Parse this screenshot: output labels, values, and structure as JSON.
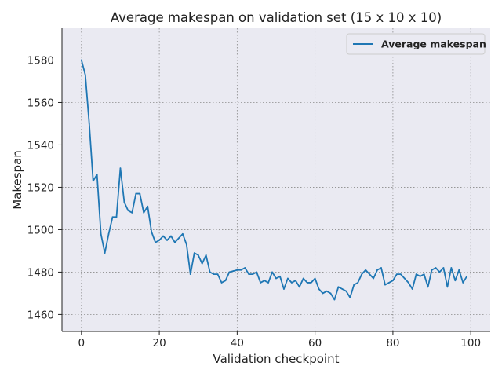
{
  "chart_data": {
    "type": "line",
    "title": "Average makespan on validation set (15 x 10 x 10)",
    "xlabel": "Validation checkpoint",
    "ylabel": "Makespan",
    "xlim": [
      -5,
      105
    ],
    "ylim": [
      1452,
      1595
    ],
    "xticks": [
      0,
      20,
      40,
      60,
      80,
      100
    ],
    "yticks": [
      1460,
      1480,
      1500,
      1520,
      1540,
      1560,
      1580
    ],
    "grid": true,
    "legend_position": "top-right",
    "series": [
      {
        "name": "Average makespan",
        "color": "#1f77b4",
        "x": [
          0,
          1,
          2,
          3,
          4,
          5,
          6,
          7,
          8,
          9,
          10,
          11,
          12,
          13,
          14,
          15,
          16,
          17,
          18,
          19,
          20,
          21,
          22,
          23,
          24,
          25,
          26,
          27,
          28,
          29,
          30,
          31,
          32,
          33,
          34,
          35,
          36,
          37,
          38,
          39,
          40,
          41,
          42,
          43,
          44,
          45,
          46,
          47,
          48,
          49,
          50,
          51,
          52,
          53,
          54,
          55,
          56,
          57,
          58,
          59,
          60,
          61,
          62,
          63,
          64,
          65,
          66,
          67,
          68,
          69,
          70,
          71,
          72,
          73,
          74,
          75,
          76,
          77,
          78,
          79,
          80,
          81,
          82,
          83,
          84,
          85,
          86,
          87,
          88,
          89,
          90,
          91,
          92,
          93,
          94,
          95,
          96,
          97,
          98,
          99
        ],
        "values": [
          1580,
          1573,
          1550,
          1523,
          1526,
          1498,
          1489,
          1498,
          1506,
          1506,
          1529,
          1513,
          1509,
          1508,
          1517,
          1517,
          1508,
          1511,
          1499,
          1494,
          1495,
          1497,
          1495,
          1497,
          1494,
          1496,
          1498,
          1493,
          1479,
          1489,
          1488,
          1484,
          1488,
          1480,
          1479,
          1479,
          1475,
          1476,
          1480,
          1480.5,
          1481,
          1481,
          1482,
          1479,
          1479,
          1480,
          1475,
          1476,
          1475,
          1480,
          1477,
          1478,
          1472,
          1477,
          1475,
          1476,
          1473,
          1477,
          1475,
          1475,
          1477,
          1472,
          1470,
          1471,
          1470,
          1467,
          1473,
          1472,
          1471,
          1468,
          1474,
          1475,
          1479,
          1481,
          1479,
          1477,
          1481,
          1482,
          1474,
          1475,
          1476,
          1479,
          1479,
          1477,
          1475,
          1472,
          1479,
          1478,
          1479,
          1473,
          1481,
          1482,
          1480,
          1482,
          1473,
          1482,
          1476,
          1481,
          1475,
          1478
        ]
      }
    ]
  }
}
